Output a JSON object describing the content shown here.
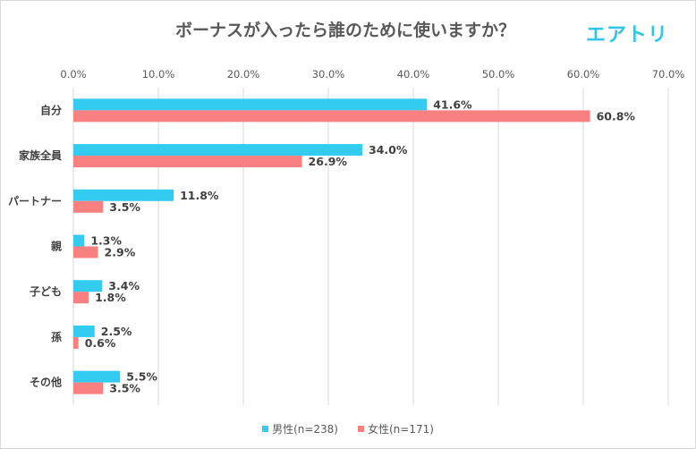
{
  "title": "ボーナスが入ったら誰のために使いますか？",
  "logo": "エアトリ",
  "colors": {
    "male": "#33ccf0",
    "female": "#f98080",
    "grid": "#d9d9d9"
  },
  "chart_data": {
    "type": "bar",
    "orientation": "horizontal",
    "categories": [
      "自分",
      "家族全員",
      "パートナー",
      "親",
      "子ども",
      "孫",
      "その他"
    ],
    "series": [
      {
        "name": "男性(n=238)",
        "values": [
          41.6,
          34.0,
          11.8,
          1.3,
          3.4,
          2.5,
          5.5
        ]
      },
      {
        "name": "女性(n=171)",
        "values": [
          60.8,
          26.9,
          3.5,
          2.9,
          1.8,
          0.6,
          3.5
        ]
      }
    ],
    "xlim": [
      0,
      70
    ],
    "ticks": [
      0,
      10,
      20,
      30,
      40,
      50,
      60,
      70
    ],
    "tick_labels": [
      "0.0%",
      "10.0%",
      "20.0%",
      "30.0%",
      "40.0%",
      "50.0%",
      "60.0%",
      "70.0%"
    ],
    "data_labels": [
      [
        "41.6%",
        "34.0%",
        "11.8%",
        "1.3%",
        "3.4%",
        "2.5%",
        "5.5%"
      ],
      [
        "60.8%",
        "26.9%",
        "3.5%",
        "2.9%",
        "1.8%",
        "0.6%",
        "3.5%"
      ]
    ],
    "axis_position": "top",
    "grid": true,
    "legend_position": "bottom"
  }
}
